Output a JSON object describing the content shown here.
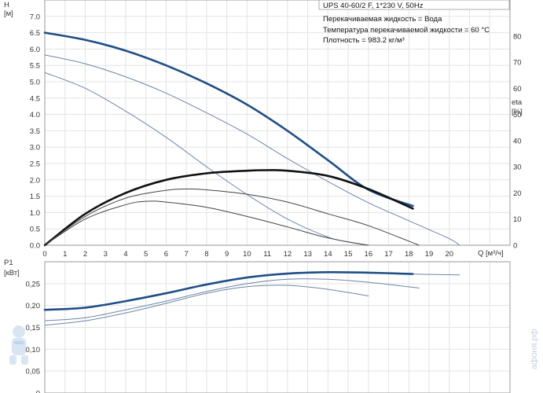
{
  "chart_data": [
    {
      "type": "line",
      "title": "UPS 40-60/2 F, 1*230 V, 50Hz",
      "info": [
        "Перекачиваемая жидкость = Вода",
        "Температура перекачиваемой жидкости = 60 °C",
        "Плотность = 983.2 кг/м³"
      ],
      "ylabel": "H",
      "yunit": "[м]",
      "y2label": "eta",
      "y2unit": "[%]",
      "xlabel": "Q [м³/ч]",
      "xlim": [
        0,
        23
      ],
      "ylim": [
        0,
        7.5
      ],
      "y2lim": [
        0,
        93.75
      ],
      "xticks": [
        "0",
        "1",
        "2",
        "3",
        "4",
        "5",
        "6",
        "7",
        "8",
        "9",
        "10",
        "11",
        "12",
        "13",
        "14",
        "15",
        "16",
        "17",
        "18",
        "19",
        "20"
      ],
      "yticks": [
        "0.0",
        "0.5",
        "1.0",
        "1.5",
        "2.0",
        "2.5",
        "3.0",
        "3.5",
        "4.0",
        "4.5",
        "5.0",
        "5.5",
        "6.0",
        "6.5",
        "7.0"
      ],
      "y2ticks": [
        "0",
        "10",
        "20",
        "30",
        "40",
        "50",
        "60",
        "70",
        "80"
      ],
      "grid": true,
      "series": [
        {
          "axis": "H",
          "weight": "bold",
          "x": [
            0,
            2,
            4,
            6,
            8,
            10,
            12,
            14,
            16,
            18.2
          ],
          "y": [
            6.5,
            6.28,
            5.95,
            5.5,
            4.95,
            4.3,
            3.5,
            2.6,
            1.7,
            1.2
          ]
        },
        {
          "axis": "H",
          "weight": "thin",
          "x": [
            0,
            2,
            4,
            6,
            8,
            10,
            12,
            14,
            16,
            18,
            20,
            20.5
          ],
          "y": [
            5.82,
            5.55,
            5.15,
            4.65,
            4.05,
            3.4,
            2.65,
            1.95,
            1.3,
            0.75,
            0.2,
            0
          ]
        },
        {
          "axis": "H",
          "weight": "thin",
          "x": [
            0,
            2,
            4,
            6,
            8,
            10,
            12,
            14,
            15,
            16
          ],
          "y": [
            5.28,
            4.8,
            4.1,
            3.3,
            2.4,
            1.55,
            0.8,
            0.25,
            0.1,
            0
          ]
        },
        {
          "axis": "eta",
          "weight": "bold",
          "x": [
            0,
            2,
            4,
            6,
            8,
            10,
            11,
            12,
            14,
            16,
            18.2
          ],
          "y": [
            0,
            12,
            20,
            25,
            27.5,
            28.5,
            28.7,
            28.5,
            26.5,
            21.5,
            14
          ]
        },
        {
          "axis": "eta",
          "weight": "thin",
          "x": [
            0,
            2,
            4,
            6,
            7,
            8,
            10,
            12,
            14,
            16,
            18.5
          ],
          "y": [
            0,
            11,
            18,
            21,
            21.5,
            21.2,
            19.5,
            16.5,
            12,
            7.5,
            0
          ]
        },
        {
          "axis": "eta",
          "weight": "thin",
          "x": [
            0,
            2,
            4,
            5,
            6,
            8,
            10,
            12,
            14,
            16
          ],
          "y": [
            0,
            10,
            15.5,
            16.8,
            16.5,
            14.5,
            11,
            7,
            2.8,
            0
          ]
        }
      ]
    },
    {
      "type": "line",
      "ylabel": "P1",
      "yunit": "[кВт]",
      "xlim": [
        0,
        23
      ],
      "ylim": [
        0,
        0.3
      ],
      "yticks": [
        "0",
        "0,05",
        "0,10",
        "0,15",
        "0,20",
        "0,25"
      ],
      "grid": true,
      "series": [
        {
          "weight": "bold",
          "x": [
            0,
            2,
            4,
            6,
            8,
            10,
            12,
            14,
            16,
            18.2
          ],
          "y": [
            0.19,
            0.195,
            0.21,
            0.228,
            0.248,
            0.264,
            0.273,
            0.276,
            0.275,
            0.272
          ]
        },
        {
          "weight": "thin",
          "x": [
            18.2,
            19,
            20.5
          ],
          "y": [
            0.272,
            0.271,
            0.27
          ]
        },
        {
          "weight": "thin",
          "x": [
            0,
            2,
            4,
            6,
            8,
            10,
            12,
            14,
            16,
            18.5
          ],
          "y": [
            0.165,
            0.172,
            0.19,
            0.21,
            0.232,
            0.25,
            0.26,
            0.26,
            0.253,
            0.24
          ]
        },
        {
          "weight": "thin",
          "x": [
            0,
            2,
            4,
            6,
            8,
            10,
            12,
            14,
            16
          ],
          "y": [
            0.155,
            0.165,
            0.183,
            0.205,
            0.228,
            0.243,
            0.246,
            0.237,
            0.222
          ]
        }
      ]
    }
  ],
  "watermark": "афоня.рф"
}
